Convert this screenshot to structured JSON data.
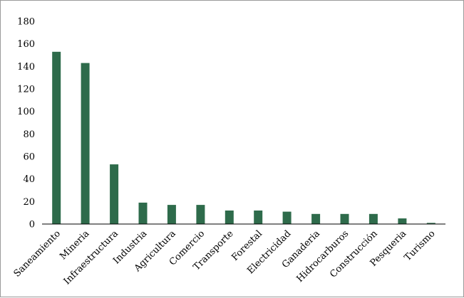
{
  "chart_data": {
    "type": "bar",
    "title": "",
    "xlabel": "",
    "ylabel": "",
    "ylim": [
      0,
      180
    ],
    "yticks": [
      0,
      20,
      40,
      60,
      80,
      100,
      120,
      140,
      160,
      180
    ],
    "grid": false,
    "legend": "none",
    "bar_color": "#2e6b4b",
    "categories": [
      "Saneamiento",
      "Mineria",
      "Infraestructura",
      "Industria",
      "Agricultura",
      "Comercio",
      "Transporte",
      "Forestal",
      "Electricidad",
      "Ganaderia",
      "Hidrocarburos",
      "Construcción",
      "Pesqueria",
      "Turismo"
    ],
    "values": [
      153,
      143,
      53,
      19,
      17,
      17,
      12,
      12,
      11,
      9,
      9,
      9,
      5,
      1
    ]
  }
}
